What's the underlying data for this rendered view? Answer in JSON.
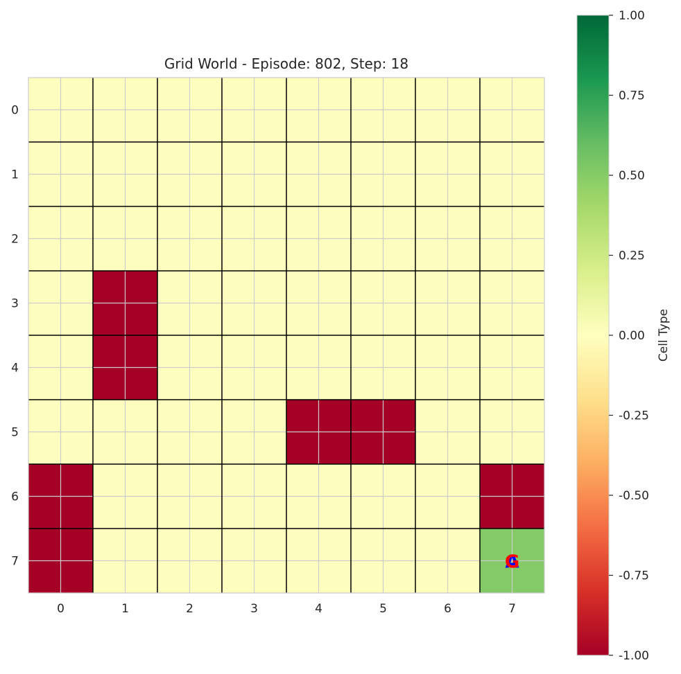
{
  "chart_data": {
    "type": "heatmap",
    "title": "Grid World - Episode: 802, Step: 18",
    "xlabel": "",
    "ylabel": "",
    "x_ticks": [
      "0",
      "1",
      "2",
      "3",
      "4",
      "5",
      "6",
      "7"
    ],
    "y_ticks": [
      "0",
      "1",
      "2",
      "3",
      "4",
      "5",
      "6",
      "7"
    ],
    "grid": [
      [
        0,
        0,
        0,
        0,
        0,
        0,
        0,
        0
      ],
      [
        0,
        0,
        0,
        0,
        0,
        0,
        0,
        0
      ],
      [
        0,
        0,
        0,
        0,
        0,
        0,
        0,
        0
      ],
      [
        0,
        -1,
        0,
        0,
        0,
        0,
        0,
        0
      ],
      [
        0,
        -1,
        0,
        0,
        0,
        0,
        0,
        0
      ],
      [
        0,
        0,
        0,
        0,
        -1,
        -1,
        0,
        0
      ],
      [
        -1,
        0,
        0,
        0,
        0,
        0,
        0,
        -1
      ],
      [
        -1,
        0,
        0,
        0,
        0,
        0,
        0,
        0.5
      ]
    ],
    "markers": [
      {
        "text": "A",
        "row": 7,
        "col": 7,
        "color": "#0000ff"
      },
      {
        "text": "G",
        "row": 7,
        "col": 7,
        "color": "#ff0000"
      }
    ],
    "colorbar": {
      "label": "Cell Type",
      "min": -1.0,
      "max": 1.0,
      "colormap": "RdYlGn",
      "ticks": [
        "-1.00",
        "-0.75",
        "-0.50",
        "-0.25",
        "0.00",
        "0.25",
        "0.50",
        "0.75",
        "1.00"
      ]
    },
    "colors": {
      "obstacle": "#a50026",
      "empty": "#feffbe",
      "goal": "#84ca66"
    }
  }
}
